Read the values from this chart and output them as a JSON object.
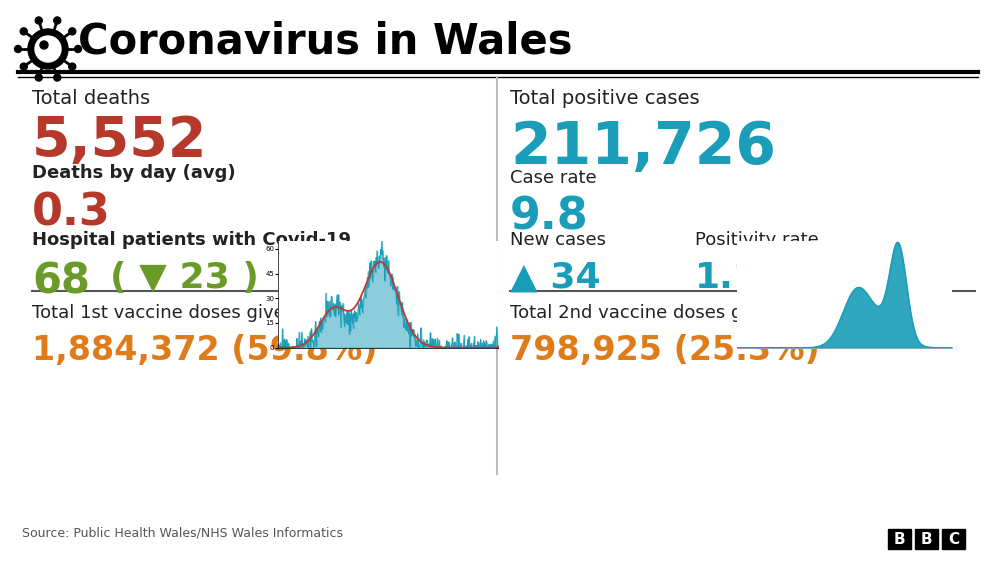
{
  "title": "Coronavirus in Wales",
  "bg_color": "#ffffff",
  "title_color": "#000000",
  "left_panel": {
    "total_deaths_label": "Total deaths",
    "total_deaths_value": "5,552",
    "total_deaths_color": "#b5382a",
    "deaths_day_label": "Deaths by day (avg)",
    "deaths_day_value": "0.3",
    "deaths_day_color": "#b5382a",
    "hospital_label": "Hospital patients with Covid-19",
    "hospital_value": "68",
    "hospital_color": "#6a9a2a",
    "hospital_change": "( ▼ 23 )",
    "hospital_change_color": "#6a9a2a",
    "vaccine1_label": "Total 1st vaccine doses given",
    "vaccine1_value": "1,884,372 (59.8%)",
    "vaccine1_color": "#e07b1a"
  },
  "right_panel": {
    "total_cases_label": "Total positive cases",
    "total_cases_value": "211,726",
    "total_cases_color": "#1a9db8",
    "case_rate_label": "Case rate",
    "case_rate_value": "9.8",
    "case_rate_color": "#1a9db8",
    "new_cases_label": "New cases",
    "new_cases_value": "▲ 34",
    "new_cases_color": "#1a9db8",
    "positivity_label": "Positivity rate",
    "positivity_value": "1.1%",
    "positivity_color": "#1a9db8",
    "vaccine2_label": "Total 2nd vaccine doses given",
    "vaccine2_value": "798,925 (25.3%)",
    "vaccine2_color": "#e07b1a"
  },
  "source_text": "Source: Public Health Wales/NHS Wales Informatics",
  "label_color": "#222222",
  "separator_color": "#555555",
  "teal_color": "#1a9db8"
}
